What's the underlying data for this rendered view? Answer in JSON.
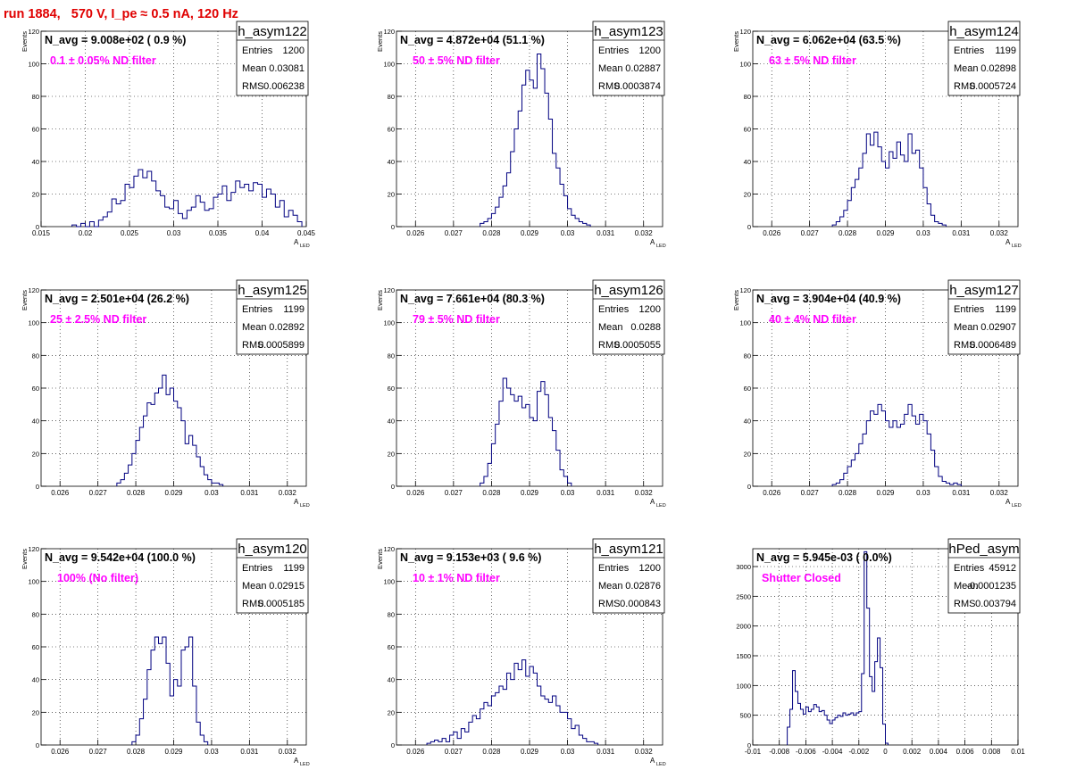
{
  "page_title": "run 1884,   570 V, I_pe ≈ 0.5 nA, 120 Hz",
  "colors": {
    "title": "#e00000",
    "annotation": "#ff00ff",
    "histogram": "#000080",
    "grid": "#000000"
  },
  "stats_labels": {
    "entries": "Entries",
    "mean": "Mean",
    "rms": "RMS"
  },
  "chart_data": [
    {
      "type": "bar",
      "name": "h_asym122",
      "navg": "N_avg = 9.008e+02 ( 0.9 %)",
      "annotation": "0.1 ± 0.05% ND filter",
      "entries": "1200",
      "mean": "0.03081",
      "rms": "0.006238",
      "ylabel": "Events",
      "xlabel": "A",
      "xlabel_sub": "LED",
      "xlim": [
        0.015,
        0.045
      ],
      "ylim": [
        0,
        120
      ],
      "xticks": [
        0.015,
        0.02,
        0.025,
        0.03,
        0.035,
        0.04,
        0.045
      ],
      "xtick_labels": [
        "0.015",
        "0.02",
        "0.025",
        "0.03",
        "0.035",
        "0.04",
        "0.045"
      ],
      "yticks": [
        0,
        20,
        40,
        60,
        80,
        100,
        120
      ],
      "ytick_labels": [
        "0",
        "20",
        "40",
        "60",
        "80",
        "100",
        "120"
      ],
      "bin_start": 0.0185,
      "bin_width": 0.0005,
      "values": [
        1,
        0,
        2,
        0,
        3,
        0,
        4,
        6,
        9,
        17,
        14,
        16,
        26,
        24,
        31,
        35,
        30,
        34,
        28,
        22,
        19,
        12,
        11,
        16,
        8,
        5,
        10,
        12,
        19,
        15,
        10,
        11,
        18,
        20,
        25,
        16,
        21,
        28,
        24,
        26,
        22,
        27,
        26,
        18,
        23,
        20,
        12,
        16,
        6,
        10,
        7,
        3
      ]
    },
    {
      "type": "bar",
      "name": "h_asym123",
      "navg": "N_avg = 4.872e+04 (51.1 %)",
      "annotation": "50 ± 5% ND filter",
      "entries": "1200",
      "mean": "0.02887",
      "rms": "0.0003874",
      "ylabel": "Events",
      "xlabel": "A",
      "xlabel_sub": "LED",
      "xlim": [
        0.0255,
        0.0325
      ],
      "ylim": [
        0,
        120
      ],
      "xticks": [
        0.026,
        0.027,
        0.028,
        0.029,
        0.03,
        0.031,
        0.032
      ],
      "xtick_labels": [
        "0.026",
        "0.027",
        "0.028",
        "0.029",
        "0.03",
        "0.031",
        "0.032"
      ],
      "yticks": [
        0,
        20,
        40,
        60,
        80,
        100,
        120
      ],
      "ytick_labels": [
        "0",
        "20",
        "40",
        "60",
        "80",
        "100",
        "120"
      ],
      "bin_start": 0.0277,
      "bin_width": 0.0001,
      "values": [
        2,
        3,
        5,
        8,
        12,
        18,
        25,
        33,
        46,
        60,
        71,
        87,
        96,
        90,
        85,
        106,
        97,
        82,
        66,
        45,
        36,
        26,
        19,
        11,
        7,
        5,
        3,
        2,
        1
      ]
    },
    {
      "type": "bar",
      "name": "h_asym124",
      "navg": "N_avg = 6.062e+04 (63.5 %)",
      "annotation": "63 ± 5% ND filter",
      "entries": "1199",
      "mean": "0.02898",
      "rms": "0.0005724",
      "ylabel": "Events",
      "xlabel": "A",
      "xlabel_sub": "LED",
      "xlim": [
        0.0255,
        0.0325
      ],
      "ylim": [
        0,
        120
      ],
      "xticks": [
        0.026,
        0.027,
        0.028,
        0.029,
        0.03,
        0.031,
        0.032
      ],
      "xtick_labels": [
        "0.026",
        "0.027",
        "0.028",
        "0.029",
        "0.03",
        "0.031",
        "0.032"
      ],
      "yticks": [
        0,
        20,
        40,
        60,
        80,
        100,
        120
      ],
      "ytick_labels": [
        "0",
        "20",
        "40",
        "60",
        "80",
        "100",
        "120"
      ],
      "bin_start": 0.0276,
      "bin_width": 0.0001,
      "values": [
        1,
        3,
        6,
        10,
        16,
        24,
        29,
        36,
        45,
        57,
        50,
        58,
        49,
        40,
        36,
        46,
        42,
        52,
        44,
        40,
        57,
        45,
        47,
        36,
        24,
        14,
        7,
        3,
        2,
        1
      ]
    },
    {
      "type": "bar",
      "name": "h_asym125",
      "navg": "N_avg = 2.501e+04 (26.2 %)",
      "annotation": "25 ± 2.5% ND filter",
      "entries": "1199",
      "mean": "0.02892",
      "rms": "0.0005899",
      "ylabel": "Events",
      "xlabel": "A",
      "xlabel_sub": "LED",
      "xlim": [
        0.0255,
        0.0325
      ],
      "ylim": [
        0,
        120
      ],
      "xticks": [
        0.026,
        0.027,
        0.028,
        0.029,
        0.03,
        0.031,
        0.032
      ],
      "xtick_labels": [
        "0.026",
        "0.027",
        "0.028",
        "0.029",
        "0.03",
        "0.031",
        "0.032"
      ],
      "yticks": [
        0,
        20,
        40,
        60,
        80,
        100,
        120
      ],
      "ytick_labels": [
        "0",
        "20",
        "40",
        "60",
        "80",
        "100",
        "120"
      ],
      "bin_start": 0.0275,
      "bin_width": 0.0001,
      "values": [
        2,
        4,
        8,
        13,
        20,
        28,
        36,
        43,
        51,
        50,
        57,
        60,
        68,
        56,
        60,
        52,
        48,
        40,
        26,
        31,
        25,
        18,
        12,
        7,
        4,
        2,
        2,
        1
      ]
    },
    {
      "type": "bar",
      "name": "h_asym126",
      "navg": "N_avg = 7.661e+04 (80.3 %)",
      "annotation": "79 ± 5% ND filter",
      "entries": "1200",
      "mean": "0.0288",
      "rms": "0.0005055",
      "ylabel": "Events",
      "xlabel": "A",
      "xlabel_sub": "LED",
      "xlim": [
        0.0255,
        0.0325
      ],
      "ylim": [
        0,
        120
      ],
      "xticks": [
        0.026,
        0.027,
        0.028,
        0.029,
        0.03,
        0.031,
        0.032
      ],
      "xtick_labels": [
        "0.026",
        "0.027",
        "0.028",
        "0.029",
        "0.03",
        "0.031",
        "0.032"
      ],
      "yticks": [
        0,
        20,
        40,
        60,
        80,
        100,
        120
      ],
      "ytick_labels": [
        "0",
        "20",
        "40",
        "60",
        "80",
        "100",
        "120"
      ],
      "bin_start": 0.0277,
      "bin_width": 0.0001,
      "values": [
        2,
        6,
        14,
        26,
        38,
        52,
        66,
        60,
        56,
        52,
        55,
        48,
        50,
        42,
        40,
        58,
        64,
        56,
        42,
        34,
        22,
        10,
        6,
        2
      ]
    },
    {
      "type": "bar",
      "name": "h_asym127",
      "navg": "N_avg = 3.904e+04 (40.9 %)",
      "annotation": "40 ± 4% ND filter",
      "entries": "1199",
      "mean": "0.02907",
      "rms": "0.0006489",
      "ylabel": "Events",
      "xlabel": "A",
      "xlabel_sub": "LED",
      "xlim": [
        0.0255,
        0.0325
      ],
      "ylim": [
        0,
        120
      ],
      "xticks": [
        0.026,
        0.027,
        0.028,
        0.029,
        0.03,
        0.031,
        0.032
      ],
      "xtick_labels": [
        "0.026",
        "0.027",
        "0.028",
        "0.029",
        "0.03",
        "0.031",
        "0.032"
      ],
      "yticks": [
        0,
        20,
        40,
        60,
        80,
        100,
        120
      ],
      "ytick_labels": [
        "0",
        "20",
        "40",
        "60",
        "80",
        "100",
        "120"
      ],
      "bin_start": 0.0276,
      "bin_width": 0.0001,
      "values": [
        1,
        2,
        4,
        8,
        12,
        16,
        20,
        26,
        32,
        40,
        46,
        44,
        50,
        46,
        40,
        36,
        40,
        36,
        38,
        44,
        50,
        43,
        38,
        44,
        40,
        32,
        22,
        12,
        6,
        3,
        2,
        1,
        2,
        1
      ]
    },
    {
      "type": "bar",
      "name": "h_asym120",
      "navg": "N_avg = 9.542e+04 (100.0 %)",
      "annotation": "100% (No filter)",
      "entries": "1199",
      "mean": "0.02915",
      "rms": "0.0005185",
      "ylabel": "Events",
      "xlabel": "A",
      "xlabel_sub": "LED",
      "xlim": [
        0.0255,
        0.0325
      ],
      "ylim": [
        0,
        120
      ],
      "xticks": [
        0.026,
        0.027,
        0.028,
        0.029,
        0.03,
        0.031,
        0.032
      ],
      "xtick_labels": [
        "0.026",
        "0.027",
        "0.028",
        "0.029",
        "0.03",
        "0.031",
        "0.032"
      ],
      "yticks": [
        0,
        20,
        40,
        60,
        80,
        100,
        120
      ],
      "ytick_labels": [
        "0",
        "20",
        "40",
        "60",
        "80",
        "100",
        "120"
      ],
      "bin_start": 0.0279,
      "bin_width": 0.0001,
      "values": [
        2,
        6,
        16,
        28,
        46,
        58,
        66,
        62,
        66,
        50,
        30,
        40,
        36,
        58,
        60,
        66,
        36,
        14,
        6,
        2
      ]
    },
    {
      "type": "bar",
      "name": "h_asym121",
      "navg": "N_avg = 9.153e+03 ( 9.6 %)",
      "annotation": "10 ± 1% ND filter",
      "entries": "1200",
      "mean": "0.02876",
      "rms": "0.000843",
      "ylabel": "Events",
      "xlabel": "A",
      "xlabel_sub": "LED",
      "xlim": [
        0.0255,
        0.0325
      ],
      "ylim": [
        0,
        120
      ],
      "xticks": [
        0.026,
        0.027,
        0.028,
        0.029,
        0.03,
        0.031,
        0.032
      ],
      "xtick_labels": [
        "0.026",
        "0.027",
        "0.028",
        "0.029",
        "0.03",
        "0.031",
        "0.032"
      ],
      "yticks": [
        0,
        20,
        40,
        60,
        80,
        100,
        120
      ],
      "ytick_labels": [
        "0",
        "20",
        "40",
        "60",
        "80",
        "100",
        "120"
      ],
      "bin_start": 0.0263,
      "bin_width": 0.0001,
      "values": [
        1,
        2,
        3,
        2,
        4,
        2,
        6,
        8,
        4,
        10,
        8,
        14,
        18,
        16,
        22,
        26,
        24,
        30,
        32,
        36,
        34,
        44,
        40,
        50,
        46,
        52,
        42,
        48,
        44,
        36,
        30,
        28,
        26,
        30,
        24,
        20,
        20,
        16,
        10,
        12,
        6,
        4,
        2,
        2,
        1
      ]
    },
    {
      "type": "bar",
      "name": "hPed_asym",
      "navg": "N_avg = 5.945e-03 ( 0.0%)",
      "annotation": "Shutter Closed",
      "entries": "45912",
      "mean": "-0.0001235",
      "rms": "0.003794",
      "ylabel": "",
      "xlabel": "",
      "xlabel_sub": "",
      "xlim": [
        -0.01,
        0.01
      ],
      "ylim": [
        0,
        3300
      ],
      "xticks": [
        -0.01,
        -0.008,
        -0.006,
        -0.004,
        -0.002,
        0,
        0.002,
        0.004,
        0.006,
        0.008,
        0.01
      ],
      "xtick_labels": [
        "-0.01",
        "-0.008",
        "-0.006",
        "-0.004",
        "-0.002",
        "0",
        "0.002",
        "0.004",
        "0.006",
        "0.008",
        "0.01"
      ],
      "yticks": [
        0,
        500,
        1000,
        1500,
        2000,
        2500,
        3000
      ],
      "ytick_labels": [
        "0",
        "500",
        "1000",
        "1500",
        "2000",
        "2500",
        "3000"
      ],
      "bin_start": -0.0074,
      "bin_width": 0.0002,
      "values": [
        300,
        600,
        1250,
        900,
        700,
        600,
        520,
        640,
        560,
        600,
        680,
        640,
        560,
        580,
        500,
        420,
        360,
        420,
        460,
        500,
        480,
        540,
        500,
        520,
        540,
        500,
        540,
        560,
        1200,
        3250,
        2300,
        1150,
        900,
        1400,
        1800,
        1300,
        350,
        30
      ]
    }
  ]
}
